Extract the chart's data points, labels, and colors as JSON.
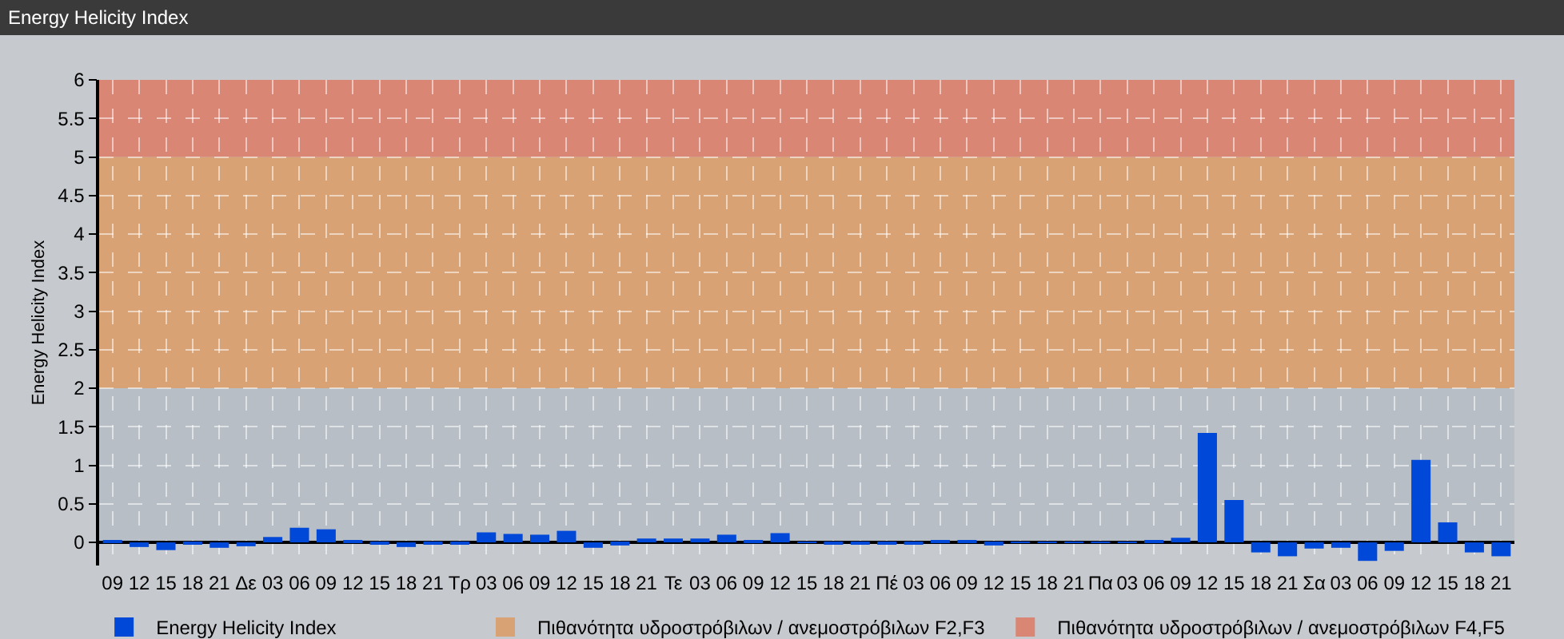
{
  "chart_data": {
    "type": "bar",
    "title": "Energy Helicity Index",
    "ylabel": "Energy Helicity Index",
    "categories": [
      "09",
      "12",
      "15",
      "18",
      "21",
      "Δε",
      "03",
      "06",
      "09",
      "12",
      "15",
      "18",
      "21",
      "Τρ",
      "03",
      "06",
      "09",
      "12",
      "15",
      "18",
      "21",
      "Τε",
      "03",
      "06",
      "09",
      "12",
      "15",
      "18",
      "21",
      "Πέ",
      "03",
      "06",
      "09",
      "12",
      "15",
      "18",
      "21",
      "Πα",
      "03",
      "06",
      "09",
      "12",
      "15",
      "18",
      "21",
      "Σα",
      "03",
      "06",
      "09",
      "12",
      "15",
      "18",
      "21"
    ],
    "series": [
      {
        "name": "Energy Helicity Index",
        "color": "#0048d8",
        "values": [
          0.02,
          -0.06,
          -0.1,
          -0.03,
          -0.07,
          -0.05,
          0.07,
          0.19,
          0.17,
          0.02,
          -0.03,
          -0.06,
          -0.03,
          -0.03,
          0.13,
          0.11,
          0.1,
          0.15,
          -0.07,
          -0.04,
          0.05,
          0.05,
          0.05,
          0.1,
          0.02,
          0.12,
          0.01,
          -0.02,
          -0.02,
          -0.02,
          -0.02,
          0.03,
          0.03,
          -0.04,
          0.01,
          0.01,
          0.01,
          0.01,
          0.01,
          0.02,
          0.06,
          1.42,
          0.55,
          -0.13,
          -0.18,
          -0.08,
          -0.07,
          -0.24,
          -0.11,
          1.07,
          0.26,
          -0.13,
          -0.18
        ]
      }
    ],
    "ylim": [
      -0.3,
      6
    ],
    "yticks": [
      0,
      0.5,
      1,
      1.5,
      2,
      2.5,
      3,
      3.5,
      4,
      4.5,
      5,
      5.5,
      6
    ],
    "grid": true,
    "legend": "bottom left",
    "bands": [
      {
        "axis": "y",
        "from": 0,
        "to": 2,
        "color": "#b8bec6"
      },
      {
        "axis": "y",
        "from": 2,
        "to": 5,
        "color": "#d9a274",
        "label": "Πιθανότητα υδροστρόβιλων / ανεμοστρόβιλων F2,F3"
      },
      {
        "axis": "y",
        "from": 5,
        "to": 6,
        "color": "#da8674",
        "label": "Πιθανότητα υδροστρόβιλων / ανεμοστρόβιλων F4,F5"
      }
    ]
  }
}
